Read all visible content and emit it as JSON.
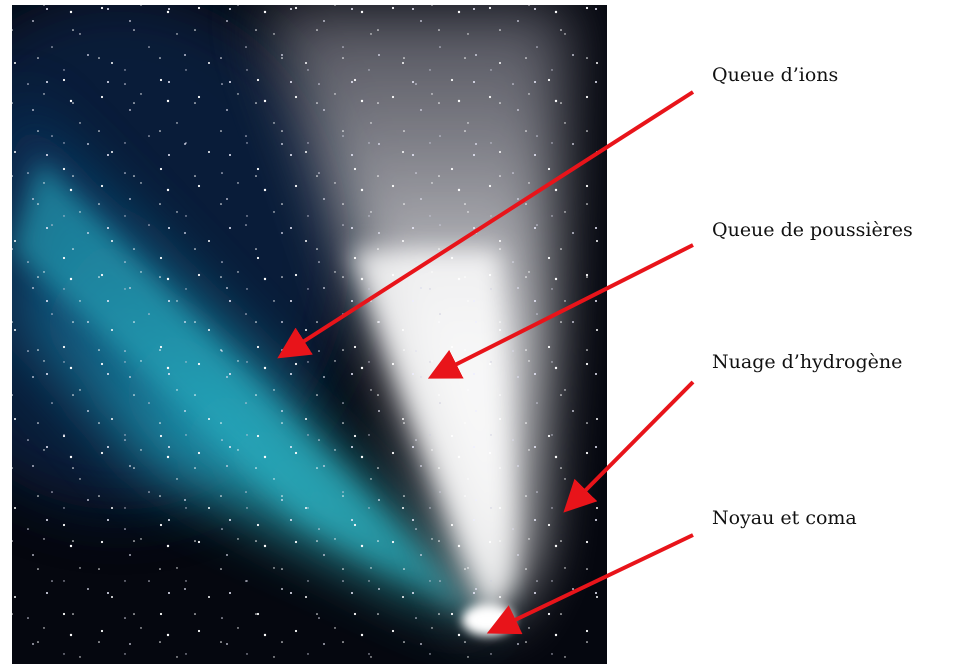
{
  "labels": [
    "Queue d’ions",
    "Queue de poussières",
    "Nuage d’hydrogène",
    "Noyau et coma"
  ]
}
